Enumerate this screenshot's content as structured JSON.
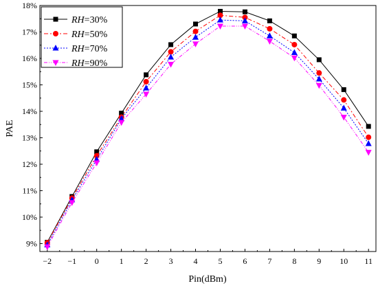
{
  "chart_data": {
    "type": "line",
    "xlabel": "Pin(dBm)",
    "ylabel": "PAE",
    "x": [
      -2,
      -1,
      0,
      1,
      2,
      3,
      4,
      5,
      6,
      7,
      8,
      9,
      10,
      11
    ],
    "x_tick_labels": [
      "−2",
      "−1",
      "0",
      "1",
      "2",
      "3",
      "4",
      "5",
      "6",
      "7",
      "8",
      "9",
      "10",
      "11"
    ],
    "xlim": [
      -2.3,
      11.3
    ],
    "ylim": [
      8.7,
      18.0
    ],
    "y_ticks": [
      9,
      10,
      11,
      12,
      13,
      14,
      15,
      16,
      17,
      18
    ],
    "y_tick_labels": [
      "9%",
      "10%",
      "11%",
      "12%",
      "13%",
      "14%",
      "15%",
      "16%",
      "17%",
      "18%"
    ],
    "grid": false,
    "legend_position": "top-left",
    "series": [
      {
        "name_italic": "RH",
        "name_rest": "=30%",
        "color": "#000000",
        "marker": "square",
        "dash": "",
        "values": [
          9.05,
          10.78,
          12.47,
          13.93,
          15.38,
          16.52,
          17.3,
          17.78,
          17.76,
          17.42,
          16.85,
          15.95,
          14.82,
          13.43
        ]
      },
      {
        "name_italic": "RH",
        "name_rest": "=50%",
        "color": "#ff0000",
        "marker": "circle",
        "dash": "6,3,2,3",
        "values": [
          9.03,
          10.72,
          12.32,
          13.78,
          15.12,
          16.25,
          17.02,
          17.63,
          17.55,
          17.12,
          16.52,
          15.45,
          14.43,
          13.02
        ]
      },
      {
        "name_italic": "RH",
        "name_rest": "=70%",
        "color": "#0000ff",
        "marker": "triangle-up",
        "dash": "2,2",
        "values": [
          8.95,
          10.65,
          12.18,
          13.72,
          14.88,
          16.05,
          16.8,
          17.45,
          17.42,
          16.85,
          16.22,
          15.22,
          14.12,
          12.78
        ]
      },
      {
        "name_italic": "RH",
        "name_rest": "=90%",
        "color": "#ff00ff",
        "marker": "triangle-down",
        "dash": "5,2,1,2,1,2",
        "values": [
          8.88,
          10.55,
          12.05,
          13.58,
          14.65,
          15.78,
          16.55,
          17.22,
          17.22,
          16.65,
          16.02,
          14.98,
          13.78,
          12.45
        ]
      }
    ]
  }
}
